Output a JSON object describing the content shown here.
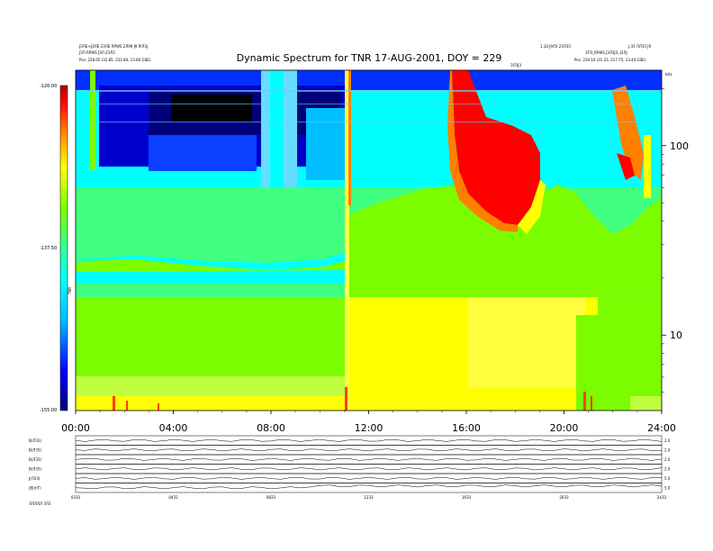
{
  "header": {
    "line1_left": "ЈЗЛБ+ЈЗЛБ 2ЗЛБ RPWS 2Л99 Ј9 ЇУЛЗЈ",
    "line2_left": "ЈЗЛ RPWS ЈЗЛ 2ЗЛЗ",
    "line3_left": "Pos:  228.05 (31.85, 231.84, 13.80 GSE)",
    "line1_right": "1.10 Ј9ЛЗ 2ЗЛЗЗ",
    "line1_far_right": "Ј.ЗЗ ЛЛЗЗ Ј9",
    "line2_right": "ЗЛЗ_RPWS ЈЗЛЗЈЗ, ЈЗЛЈ",
    "line3_right": "Pos:  234.10 (31.23, 217.75, 13.44 GSE)",
    "mid_small": "ЗЛЗЈЗ",
    "corner_unit": "kHz"
  },
  "chart_data": {
    "type": "heatmap",
    "title": "Dynamic Spectrum for TNR 17-AUG-2001, DOY = 229",
    "x_ticks": [
      "00:00",
      "04:00",
      "08:00",
      "12:00",
      "16:00",
      "20:00",
      "24:00"
    ],
    "xlim": [
      0,
      24
    ],
    "y_scale": "log",
    "y_ticks": [
      10,
      100
    ],
    "ylim_approx": [
      4,
      250
    ],
    "colorbar_label": "TNR",
    "colorbar_ticks": [
      "-120.00",
      "-137.50",
      "-155.00"
    ],
    "colorbar_range": [
      -155,
      -120
    ],
    "colorscale": [
      "#00007a",
      "#0000ff",
      "#00bfff",
      "#00ffff",
      "#40ff80",
      "#7cfc00",
      "#ffff00",
      "#ff8000",
      "#ff0000",
      "#b00000"
    ]
  },
  "panels": {
    "labels": [
      "B(ЛЗЗ)",
      "B(ЛЗЗ)",
      "B(ЛЗЗ)",
      "B(ЛЗЗ)",
      "Ј(ЛЗЗ)",
      "|B|(nT)"
    ],
    "right_ticks": [
      "2.0",
      "2.0",
      "2.0",
      "2.0",
      "5.0",
      "5.0"
    ],
    "x_ticks": [
      "0ЗЗЗ",
      "04ЗЗ",
      "08ЗЗ",
      "12ЗЗ",
      "16ЗЗ",
      "20ЗЗ",
      "24ЗЗ"
    ],
    "footer": "ЛЛЛЛЛ ЗЛЗ"
  },
  "colors": {
    "axis": "#000000",
    "background": "#ffffff"
  }
}
